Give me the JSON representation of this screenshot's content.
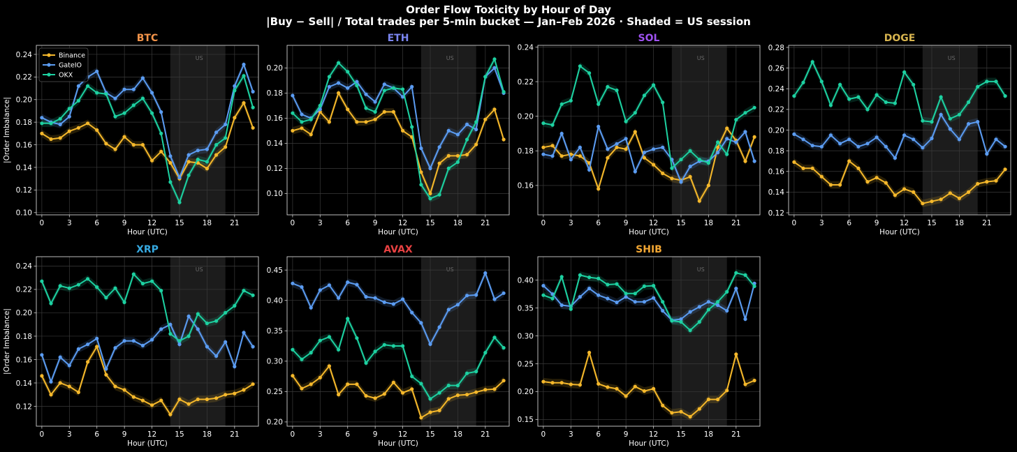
{
  "figure": {
    "title_line1": "Order Flow Toxicity by Hour of Day",
    "title_line2": "|Buy − Sell| / Total trades per 5-min bucket — Jan–Feb 2026 · Shaded = US session"
  },
  "legend": {
    "placement": "top-left of first panel",
    "entries": [
      "Binance",
      "GateIO",
      "OKX"
    ]
  },
  "colors": {
    "Binance": "#f5b82b",
    "GateIO": "#5b9cf2",
    "OKX": "#1dd1a1",
    "grid": "#3a3a3a",
    "session_band": "#1c1c1c"
  },
  "chart_data": [
    {
      "type": "line",
      "title": "BTC",
      "title_color": "#f5954a",
      "xlabel": "Hour (UTC)",
      "ylabel": "|Order Imbalance|",
      "xlim": [
        -0.6,
        23.6
      ],
      "ylim": [
        0.098,
        0.248
      ],
      "xticks": [
        "0",
        "3",
        "6",
        "9",
        "12",
        "15",
        "18",
        "21"
      ],
      "yticks": [
        "0.10",
        "0.12",
        "0.14",
        "0.16",
        "0.18",
        "0.20",
        "0.22",
        "0.24"
      ],
      "grid": true,
      "session": {
        "start": 14,
        "end": 20,
        "label": "US"
      },
      "x": [
        0,
        1,
        2,
        3,
        4,
        5,
        6,
        7,
        8,
        9,
        10,
        11,
        12,
        13,
        14,
        15,
        16,
        17,
        18,
        19,
        20,
        21,
        22,
        23
      ],
      "series": [
        {
          "name": "Binance",
          "values": [
            0.17,
            0.165,
            0.166,
            0.172,
            0.175,
            0.179,
            0.173,
            0.161,
            0.156,
            0.167,
            0.16,
            0.16,
            0.146,
            0.154,
            0.144,
            0.13,
            0.145,
            0.144,
            0.139,
            0.151,
            0.158,
            0.184,
            0.197,
            0.175
          ]
        },
        {
          "name": "GateIO",
          "values": [
            0.184,
            0.18,
            0.178,
            0.185,
            0.212,
            0.22,
            0.225,
            0.206,
            0.201,
            0.209,
            0.209,
            0.219,
            0.206,
            0.189,
            0.15,
            0.131,
            0.151,
            0.155,
            0.156,
            0.171,
            0.178,
            0.212,
            0.231,
            0.207
          ]
        },
        {
          "name": "OKX",
          "values": [
            0.179,
            0.179,
            0.183,
            0.192,
            0.199,
            0.212,
            0.206,
            0.205,
            0.185,
            0.188,
            0.195,
            0.201,
            0.188,
            0.17,
            0.127,
            0.109,
            0.133,
            0.147,
            0.145,
            0.16,
            0.166,
            0.208,
            0.221,
            0.193
          ]
        }
      ]
    },
    {
      "type": "line",
      "title": "ETH",
      "title_color": "#7b86f2",
      "xlabel": "Hour (UTC)",
      "ylabel": "",
      "xlim": [
        -0.6,
        23.6
      ],
      "ylim": [
        0.083,
        0.218
      ],
      "xticks": [
        "0",
        "3",
        "6",
        "9",
        "12",
        "15",
        "18",
        "21"
      ],
      "yticks": [
        "0.10",
        "0.12",
        "0.14",
        "0.16",
        "0.18",
        "0.20"
      ],
      "grid": true,
      "session": {
        "start": 14,
        "end": 20,
        "label": "US"
      },
      "x": [
        0,
        1,
        2,
        3,
        4,
        5,
        6,
        7,
        8,
        9,
        10,
        11,
        12,
        13,
        14,
        15,
        16,
        17,
        18,
        19,
        20,
        21,
        22,
        23
      ],
      "series": [
        {
          "name": "Binance",
          "values": [
            0.15,
            0.152,
            0.147,
            0.165,
            0.157,
            0.18,
            0.167,
            0.157,
            0.157,
            0.159,
            0.165,
            0.165,
            0.15,
            0.145,
            0.117,
            0.1,
            0.124,
            0.13,
            0.13,
            0.131,
            0.139,
            0.159,
            0.167,
            0.143
          ]
        },
        {
          "name": "GateIO",
          "values": [
            0.178,
            0.163,
            0.16,
            0.167,
            0.185,
            0.188,
            0.184,
            0.189,
            0.179,
            0.173,
            0.187,
            0.184,
            0.177,
            0.185,
            0.136,
            0.12,
            0.137,
            0.15,
            0.147,
            0.155,
            0.151,
            0.193,
            0.2,
            0.18
          ]
        },
        {
          "name": "OKX",
          "values": [
            0.164,
            0.157,
            0.159,
            0.17,
            0.193,
            0.204,
            0.197,
            0.186,
            0.168,
            0.165,
            0.182,
            0.184,
            0.183,
            0.153,
            0.107,
            0.096,
            0.099,
            0.12,
            0.125,
            0.143,
            0.157,
            0.193,
            0.207,
            0.181
          ]
        }
      ]
    },
    {
      "type": "line",
      "title": "SOL",
      "title_color": "#9e52f0",
      "xlabel": "Hour (UTC)",
      "ylabel": "",
      "xlim": [
        -0.6,
        23.6
      ],
      "ylim": [
        0.143,
        0.241
      ],
      "xticks": [
        "0",
        "3",
        "6",
        "9",
        "12",
        "15",
        "18",
        "21"
      ],
      "yticks": [
        "0.16",
        "0.18",
        "0.20",
        "0.22",
        "0.24"
      ],
      "grid": true,
      "session": {
        "start": 14,
        "end": 20,
        "label": "US"
      },
      "x": [
        0,
        1,
        2,
        3,
        4,
        5,
        6,
        7,
        8,
        9,
        10,
        11,
        12,
        13,
        14,
        15,
        16,
        17,
        18,
        19,
        20,
        21,
        22,
        23
      ],
      "series": [
        {
          "name": "Binance",
          "values": [
            0.182,
            0.183,
            0.177,
            0.178,
            0.177,
            0.173,
            0.158,
            0.176,
            0.182,
            0.181,
            0.191,
            0.176,
            0.172,
            0.167,
            0.164,
            0.163,
            0.165,
            0.151,
            0.16,
            0.182,
            0.193,
            0.186,
            0.174,
            0.188
          ]
        },
        {
          "name": "GateIO",
          "values": [
            0.178,
            0.177,
            0.19,
            0.175,
            0.182,
            0.169,
            0.194,
            0.181,
            0.184,
            0.187,
            0.168,
            0.179,
            0.181,
            0.182,
            0.175,
            0.162,
            0.171,
            0.174,
            0.174,
            0.179,
            0.187,
            0.185,
            0.191,
            0.174
          ]
        },
        {
          "name": "OKX",
          "values": [
            0.196,
            0.195,
            0.207,
            0.209,
            0.229,
            0.225,
            0.207,
            0.217,
            0.215,
            0.197,
            0.202,
            0.212,
            0.218,
            0.208,
            0.17,
            0.175,
            0.18,
            0.175,
            0.173,
            0.185,
            0.178,
            0.198,
            0.202,
            0.205
          ]
        }
      ]
    },
    {
      "type": "line",
      "title": "DOGE",
      "title_color": "#d8b54f",
      "xlabel": "Hour (UTC)",
      "ylabel": "",
      "xlim": [
        -0.6,
        23.6
      ],
      "ylim": [
        0.118,
        0.282
      ],
      "xticks": [
        "0",
        "3",
        "6",
        "9",
        "12",
        "15",
        "18",
        "21"
      ],
      "yticks": [
        "0.12",
        "0.14",
        "0.16",
        "0.18",
        "0.20",
        "0.22",
        "0.24",
        "0.26",
        "0.28"
      ],
      "grid": true,
      "session": {
        "start": 14,
        "end": 20,
        "label": "US"
      },
      "x": [
        0,
        1,
        2,
        3,
        4,
        5,
        6,
        7,
        8,
        9,
        10,
        11,
        12,
        13,
        14,
        15,
        16,
        17,
        18,
        19,
        20,
        21,
        22,
        23
      ],
      "series": [
        {
          "name": "Binance",
          "values": [
            0.169,
            0.163,
            0.163,
            0.155,
            0.147,
            0.147,
            0.17,
            0.163,
            0.15,
            0.154,
            0.149,
            0.137,
            0.143,
            0.14,
            0.129,
            0.131,
            0.133,
            0.139,
            0.134,
            0.14,
            0.148,
            0.15,
            0.151,
            0.162
          ]
        },
        {
          "name": "GateIO",
          "values": [
            0.196,
            0.191,
            0.185,
            0.184,
            0.195,
            0.187,
            0.191,
            0.184,
            0.187,
            0.193,
            0.184,
            0.173,
            0.195,
            0.191,
            0.183,
            0.192,
            0.215,
            0.201,
            0.191,
            0.206,
            0.208,
            0.177,
            0.191,
            0.184
          ]
        },
        {
          "name": "OKX",
          "values": [
            0.233,
            0.246,
            0.266,
            0.247,
            0.224,
            0.244,
            0.23,
            0.232,
            0.22,
            0.234,
            0.227,
            0.226,
            0.256,
            0.244,
            0.209,
            0.208,
            0.232,
            0.211,
            0.215,
            0.227,
            0.242,
            0.247,
            0.247,
            0.233
          ]
        }
      ]
    },
    {
      "type": "line",
      "title": "XRP",
      "title_color": "#36a9e1",
      "xlabel": "Hour (UTC)",
      "ylabel": "|Order Imbalance|",
      "xlim": [
        -0.6,
        23.6
      ],
      "ylim": [
        0.103,
        0.248
      ],
      "xticks": [
        "0",
        "3",
        "6",
        "9",
        "12",
        "15",
        "18",
        "21"
      ],
      "yticks": [
        "0.12",
        "0.14",
        "0.16",
        "0.18",
        "0.20",
        "0.22",
        "0.24"
      ],
      "grid": true,
      "session": {
        "start": 14,
        "end": 20,
        "label": "US"
      },
      "x": [
        0,
        1,
        2,
        3,
        4,
        5,
        6,
        7,
        8,
        9,
        10,
        11,
        12,
        13,
        14,
        15,
        16,
        17,
        18,
        19,
        20,
        21,
        22,
        23
      ],
      "series": [
        {
          "name": "Binance",
          "values": [
            0.146,
            0.13,
            0.14,
            0.137,
            0.132,
            0.158,
            0.171,
            0.147,
            0.137,
            0.134,
            0.128,
            0.125,
            0.121,
            0.125,
            0.113,
            0.126,
            0.122,
            0.126,
            0.126,
            0.127,
            0.13,
            0.131,
            0.134,
            0.139
          ]
        },
        {
          "name": "GateIO",
          "values": [
            0.164,
            0.141,
            0.162,
            0.155,
            0.169,
            0.173,
            0.178,
            0.152,
            0.17,
            0.176,
            0.176,
            0.172,
            0.177,
            0.186,
            0.19,
            0.173,
            0.197,
            0.186,
            0.171,
            0.163,
            0.175,
            0.154,
            0.183,
            0.171
          ]
        },
        {
          "name": "OKX",
          "values": [
            0.227,
            0.208,
            0.223,
            0.221,
            0.224,
            0.229,
            0.222,
            0.213,
            0.221,
            0.209,
            0.233,
            0.225,
            0.227,
            0.219,
            0.182,
            0.176,
            0.18,
            0.199,
            0.191,
            0.193,
            0.2,
            0.206,
            0.219,
            0.215
          ]
        }
      ]
    },
    {
      "type": "line",
      "title": "AVAX",
      "title_color": "#e84142",
      "xlabel": "Hour (UTC)",
      "ylabel": "",
      "xlim": [
        -0.6,
        23.6
      ],
      "ylim": [
        0.193,
        0.472
      ],
      "xticks": [
        "0",
        "3",
        "6",
        "9",
        "12",
        "15",
        "18",
        "21"
      ],
      "yticks": [
        "0.20",
        "0.25",
        "0.30",
        "0.35",
        "0.40",
        "0.45"
      ],
      "grid": true,
      "session": {
        "start": 14,
        "end": 20,
        "label": "US"
      },
      "x": [
        0,
        1,
        2,
        3,
        4,
        5,
        6,
        7,
        8,
        9,
        10,
        11,
        12,
        13,
        14,
        15,
        16,
        17,
        18,
        19,
        20,
        21,
        22,
        23
      ],
      "series": [
        {
          "name": "Binance",
          "values": [
            0.276,
            0.255,
            0.262,
            0.273,
            0.292,
            0.245,
            0.262,
            0.262,
            0.243,
            0.239,
            0.246,
            0.265,
            0.248,
            0.254,
            0.207,
            0.216,
            0.219,
            0.238,
            0.244,
            0.245,
            0.249,
            0.253,
            0.254,
            0.268
          ]
        },
        {
          "name": "GateIO",
          "values": [
            0.428,
            0.422,
            0.388,
            0.417,
            0.425,
            0.404,
            0.43,
            0.426,
            0.406,
            0.404,
            0.397,
            0.394,
            0.402,
            0.38,
            0.363,
            0.328,
            0.356,
            0.385,
            0.393,
            0.408,
            0.409,
            0.445,
            0.402,
            0.412
          ]
        },
        {
          "name": "OKX",
          "values": [
            0.319,
            0.303,
            0.314,
            0.334,
            0.34,
            0.319,
            0.37,
            0.338,
            0.297,
            0.316,
            0.327,
            0.325,
            0.325,
            0.275,
            0.263,
            0.238,
            0.248,
            0.26,
            0.26,
            0.28,
            0.283,
            0.314,
            0.339,
            0.322
          ]
        }
      ]
    },
    {
      "type": "line",
      "title": "SHIB",
      "title_color": "#f2a633",
      "xlabel": "Hour (UTC)",
      "ylabel": "",
      "xlim": [
        -0.6,
        23.6
      ],
      "ylim": [
        0.138,
        0.442
      ],
      "xticks": [
        "0",
        "3",
        "6",
        "9",
        "12",
        "15",
        "18",
        "21"
      ],
      "yticks": [
        "0.15",
        "0.20",
        "0.25",
        "0.30",
        "0.35",
        "0.40"
      ],
      "grid": true,
      "session": {
        "start": 14,
        "end": 20,
        "label": "US"
      },
      "x": [
        0,
        1,
        2,
        3,
        4,
        5,
        6,
        7,
        8,
        9,
        10,
        11,
        12,
        13,
        14,
        15,
        16,
        17,
        18,
        19,
        20,
        21,
        22,
        23
      ],
      "series": [
        {
          "name": "Binance",
          "values": [
            0.218,
            0.216,
            0.216,
            0.213,
            0.212,
            0.27,
            0.214,
            0.208,
            0.205,
            0.192,
            0.209,
            0.201,
            0.205,
            0.175,
            0.162,
            0.164,
            0.155,
            0.169,
            0.186,
            0.186,
            0.202,
            0.267,
            0.213,
            0.22
          ]
        },
        {
          "name": "GateIO",
          "values": [
            0.39,
            0.375,
            0.355,
            0.353,
            0.37,
            0.385,
            0.373,
            0.367,
            0.36,
            0.37,
            0.361,
            0.361,
            0.368,
            0.345,
            0.328,
            0.33,
            0.343,
            0.352,
            0.361,
            0.355,
            0.345,
            0.385,
            0.33,
            0.394
          ]
        },
        {
          "name": "OKX",
          "values": [
            0.373,
            0.367,
            0.406,
            0.348,
            0.409,
            0.405,
            0.403,
            0.392,
            0.393,
            0.376,
            0.376,
            0.389,
            0.39,
            0.361,
            0.327,
            0.325,
            0.31,
            0.325,
            0.347,
            0.361,
            0.379,
            0.413,
            0.409,
            0.389
          ]
        }
      ]
    }
  ]
}
